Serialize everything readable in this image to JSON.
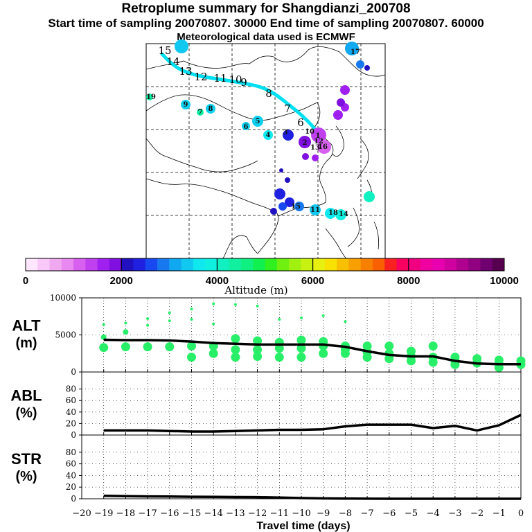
{
  "header": {
    "title": "Retroplume summary for Shangdianzi_200708",
    "subtitle": "Start time of sampling 20070807. 30000     End time of sampling 20070807. 60000",
    "met_note": "Meteorological data used is ECMWF"
  },
  "colorbar": {
    "label": "Altitude (m)",
    "min": 0,
    "max": 10000,
    "tick_labels": [
      "0",
      "2000",
      "4000",
      "6000",
      "8000",
      "10000"
    ],
    "colors": [
      "#ffe8ff",
      "#f8c8f8",
      "#f0a8f0",
      "#e888f0",
      "#d860f0",
      "#c040f0",
      "#a020f0",
      "#8010e0",
      "#2010c0",
      "#2020e0",
      "#1848f0",
      "#1878f0",
      "#10a8f0",
      "#10c8f0",
      "#10e8f0",
      "#10f0e0",
      "#10f0c0",
      "#10f0a0",
      "#10f080",
      "#10f050",
      "#30f020",
      "#70f010",
      "#a0f010",
      "#c8f010",
      "#e8f010",
      "#f8e000",
      "#f8c000",
      "#f8a000",
      "#f88000",
      "#f86000",
      "#f82020",
      "#f80060",
      "#f00080",
      "#f000a0",
      "#e800b0",
      "#d000a0",
      "#b00090",
      "#900080",
      "#700070",
      "#580050"
    ]
  },
  "map": {
    "trajectory_labels": [
      "15",
      "14",
      "13",
      "12",
      "11",
      "10",
      "9",
      "8",
      "7",
      "6"
    ],
    "cluster_labels": [
      "19",
      "9",
      "8",
      "7",
      "6",
      "5",
      "4",
      "3",
      "2",
      "1",
      "16",
      "17",
      "18",
      "14",
      "15",
      "11",
      "10",
      "12",
      "13"
    ]
  },
  "chart_data": [
    {
      "type": "line",
      "panel": "ALT",
      "ylabel": "ALT\n(m)",
      "y_ticks": [
        "0",
        "5000",
        "10000"
      ],
      "ylim": [
        0,
        10000
      ],
      "xlim": [
        -20,
        0
      ],
      "series": [
        {
          "name": "mean altitude",
          "x": [
            -19,
            -18,
            -17,
            -16,
            -15,
            -14,
            -13,
            -12,
            -11,
            -10,
            -9,
            -8,
            -7,
            -6,
            -5,
            -4,
            -3,
            -2,
            -1,
            0
          ],
          "values": [
            4350,
            4300,
            4300,
            4250,
            4100,
            3900,
            3800,
            3700,
            3700,
            3700,
            3700,
            3400,
            2800,
            2300,
            2100,
            2100,
            1500,
            1150,
            1050,
            1050
          ]
        }
      ],
      "scatter_points": [
        {
          "x": -19,
          "y": 3300
        },
        {
          "x": -19,
          "y": 4700
        },
        {
          "x": -19,
          "y": 6400
        },
        {
          "x": -18,
          "y": 3400
        },
        {
          "x": -18,
          "y": 5400
        },
        {
          "x": -18,
          "y": 6600
        },
        {
          "x": -17,
          "y": 3400
        },
        {
          "x": -17,
          "y": 6300
        },
        {
          "x": -17,
          "y": 7200
        },
        {
          "x": -16,
          "y": 3400
        },
        {
          "x": -16,
          "y": 6900
        },
        {
          "x": -16,
          "y": 8000
        },
        {
          "x": -15,
          "y": 3500
        },
        {
          "x": -15,
          "y": 2000
        },
        {
          "x": -15,
          "y": 7100
        },
        {
          "x": -15,
          "y": 8500
        },
        {
          "x": -14,
          "y": 3500
        },
        {
          "x": -14,
          "y": 2500
        },
        {
          "x": -14,
          "y": 6500
        },
        {
          "x": -14,
          "y": 9200
        },
        {
          "x": -13,
          "y": 3000
        },
        {
          "x": -13,
          "y": 2000
        },
        {
          "x": -13,
          "y": 4500
        },
        {
          "x": -13,
          "y": 9100
        },
        {
          "x": -12,
          "y": 3000
        },
        {
          "x": -12,
          "y": 2100
        },
        {
          "x": -12,
          "y": 4200
        },
        {
          "x": -12,
          "y": 8900
        },
        {
          "x": -11,
          "y": 3200
        },
        {
          "x": -11,
          "y": 2000
        },
        {
          "x": -11,
          "y": 4000
        },
        {
          "x": -11,
          "y": 7100
        },
        {
          "x": -10,
          "y": 3200
        },
        {
          "x": -10,
          "y": 2000
        },
        {
          "x": -10,
          "y": 4300
        },
        {
          "x": -10,
          "y": 7300
        },
        {
          "x": -9,
          "y": 3500
        },
        {
          "x": -9,
          "y": 2500
        },
        {
          "x": -9,
          "y": 4100
        },
        {
          "x": -9,
          "y": 7600
        },
        {
          "x": -8,
          "y": 3000
        },
        {
          "x": -8,
          "y": 2500
        },
        {
          "x": -8,
          "y": 3500
        },
        {
          "x": -8,
          "y": 6800
        },
        {
          "x": -7,
          "y": 2700
        },
        {
          "x": -7,
          "y": 2000
        },
        {
          "x": -7,
          "y": 3500
        },
        {
          "x": -6,
          "y": 2500
        },
        {
          "x": -6,
          "y": 1800
        },
        {
          "x": -6,
          "y": 3500
        },
        {
          "x": -5,
          "y": 2100
        },
        {
          "x": -5,
          "y": 1500
        },
        {
          "x": -5,
          "y": 2800
        },
        {
          "x": -4,
          "y": 2000
        },
        {
          "x": -4,
          "y": 1300
        },
        {
          "x": -4,
          "y": 3500
        },
        {
          "x": -3,
          "y": 1500
        },
        {
          "x": -3,
          "y": 1000
        },
        {
          "x": -3,
          "y": 2000
        },
        {
          "x": -2,
          "y": 1200
        },
        {
          "x": -2,
          "y": 1800
        },
        {
          "x": -1,
          "y": 1100
        },
        {
          "x": -1,
          "y": 600
        },
        {
          "x": -1,
          "y": 1600
        },
        {
          "x": 0,
          "y": 1000
        },
        {
          "x": 0,
          "y": 1500
        }
      ]
    },
    {
      "type": "line",
      "panel": "ABL",
      "ylabel": "ABL\n(%)",
      "y_ticks": [
        "0",
        "20",
        "40",
        "60",
        "80"
      ],
      "ylim": [
        0,
        100
      ],
      "xlim": [
        -20,
        0
      ],
      "series": [
        {
          "name": "boundary layer fraction",
          "x": [
            -19,
            -18,
            -17,
            -16,
            -15,
            -14,
            -13,
            -12,
            -11,
            -10,
            -9,
            -8,
            -7,
            -6,
            -5,
            -4,
            -3,
            -2,
            -1,
            0
          ],
          "values": [
            8,
            8,
            8,
            7,
            6,
            6,
            7,
            8,
            9,
            9,
            10,
            15,
            18,
            18,
            18,
            12,
            16,
            8,
            17,
            35
          ]
        }
      ]
    },
    {
      "type": "line",
      "panel": "STR",
      "ylabel": "STR\n(%)",
      "y_ticks": [
        "0",
        "20",
        "40",
        "60",
        "80"
      ],
      "ylim": [
        0,
        100
      ],
      "xlim": [
        -20,
        0
      ],
      "xlabel": "Travel time (days)",
      "x_ticks": [
        "-20",
        "-19",
        "-18",
        "-17",
        "-16",
        "-15",
        "-14",
        "-13",
        "-12",
        "-11",
        "-10",
        "-9",
        "-8",
        "-7",
        "-6",
        "-5",
        "-4",
        "-3",
        "-2",
        "-1",
        "0"
      ],
      "series": [
        {
          "name": "stratospheric fraction",
          "x": [
            -19,
            -18,
            -17,
            -16,
            -15,
            -14,
            -13,
            -12,
            -11,
            -10,
            -9,
            -8,
            -7,
            -6,
            -5,
            -4,
            -3,
            -2,
            -1,
            0
          ],
          "values": [
            5,
            4.5,
            4,
            3.8,
            3.5,
            3.3,
            3,
            2.8,
            2,
            1.2,
            0.6,
            0.3,
            0.1,
            0,
            0,
            0,
            0,
            0,
            0,
            0
          ]
        }
      ]
    }
  ]
}
